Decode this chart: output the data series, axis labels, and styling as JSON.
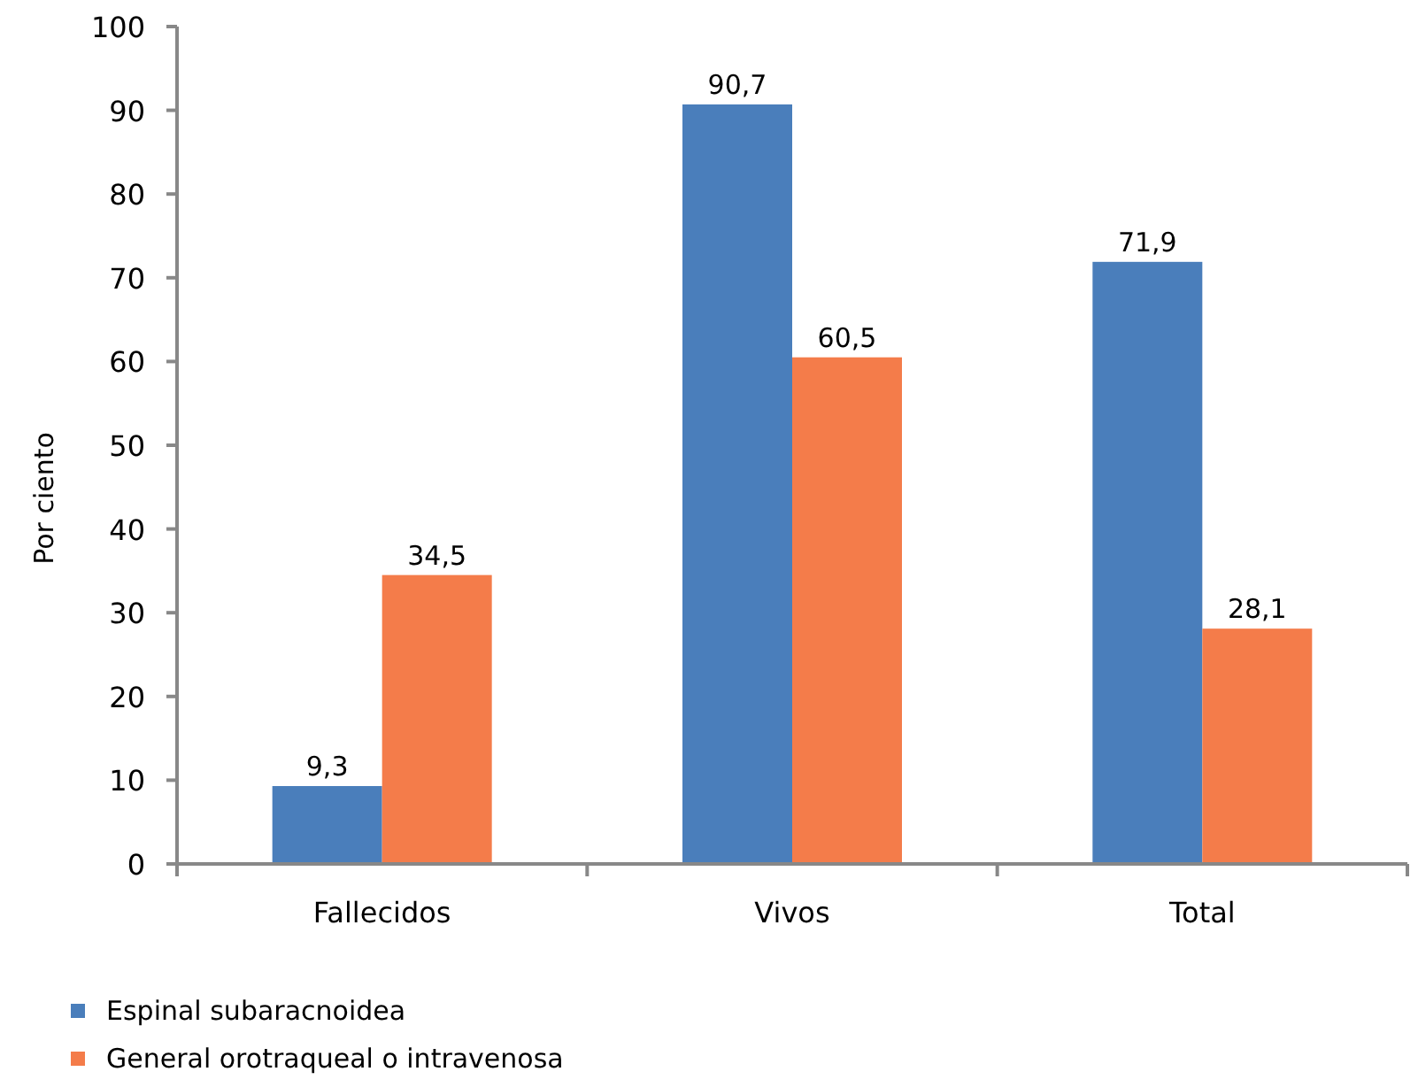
{
  "chart_data": {
    "type": "bar",
    "ylabel": "Por ciento",
    "categories": [
      "Fallecidos",
      "Vivos",
      "Total"
    ],
    "series": [
      {
        "name": "Espinal subaracnoidea",
        "color": "#4a7ebb",
        "values": [
          9.3,
          90.7,
          71.9
        ],
        "value_labels": [
          "9,3",
          "90,7",
          "71,9"
        ]
      },
      {
        "name": "General orotraqueal o intravenosa",
        "color": "#f47c4a",
        "values": [
          34.5,
          60.5,
          28.1
        ],
        "value_labels": [
          "34,5",
          "60,5",
          "28,1"
        ]
      }
    ],
    "ylim": [
      0,
      100
    ],
    "yticks": [
      0,
      10,
      20,
      30,
      40,
      50,
      60,
      70,
      80,
      90,
      100
    ],
    "grid": false,
    "legend": "bottom"
  }
}
